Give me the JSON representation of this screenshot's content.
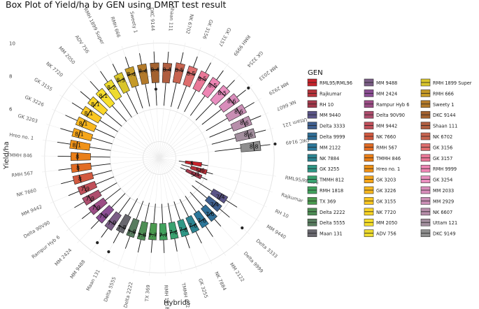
{
  "chart_data": {
    "type": "boxplot-polar",
    "title": "Box Plot of Yield/ha by GEN using DMRT test result",
    "xlabel": "Hybrids",
    "ylabel": "Yield/ha",
    "yticks": [
      6,
      8,
      10
    ],
    "ylim": [
      3,
      10.5
    ],
    "legend_title": "GEN",
    "legend_position": "right",
    "categories": [
      {
        "name": "RML95/RML96",
        "color": "#C8222B",
        "median": 5.0,
        "q1": 4.6,
        "q3": 5.6,
        "lo": 4.2,
        "hi": 6.0,
        "label": "5"
      },
      {
        "name": "Rajkumar",
        "color": "#B5323A",
        "median": 5.6,
        "q1": 5.0,
        "q3": 6.0,
        "lo": 4.4,
        "hi": 6.4,
        "label": "5.6"
      },
      {
        "name": "RH 10",
        "color": "#A3384B",
        "median": 5.4,
        "q1": 4.8,
        "q3": 5.8,
        "lo": 4.4,
        "hi": 6.2,
        "label": "5.4"
      },
      {
        "name": "MM 9440",
        "color": "#5A5487",
        "median": 7.4,
        "q1": 6.8,
        "q3": 7.8,
        "lo": 5.6,
        "hi": 8.6,
        "label": "7.4"
      },
      {
        "name": "Delta 3333",
        "color": "#3F5F8F",
        "median": 7.4,
        "q1": 6.8,
        "q3": 7.8,
        "lo": 5.6,
        "hi": 8.6,
        "label": "7.4"
      },
      {
        "name": "Delta 9999",
        "color": "#2F6E97",
        "median": 7.6,
        "q1": 7.0,
        "q3": 8.0,
        "lo": 5.8,
        "hi": 8.6,
        "label": "7.6"
      },
      {
        "name": "MM 2122",
        "color": "#2C779A",
        "median": 7.6,
        "q1": 7.0,
        "q3": 8.0,
        "lo": 5.8,
        "hi": 8.8,
        "label": "7.6"
      },
      {
        "name": "NK 7884",
        "color": "#2C8492",
        "median": 7.6,
        "q1": 7.0,
        "q3": 8.0,
        "lo": 5.8,
        "hi": 8.8,
        "label": "7.6"
      },
      {
        "name": "GK 3255",
        "color": "#2F9786",
        "median": 7.6,
        "q1": 7.0,
        "q3": 8.0,
        "lo": 5.8,
        "hi": 8.8,
        "label": "7.6"
      },
      {
        "name": "TMMH 812",
        "color": "#3AA270",
        "median": 7.6,
        "q1": 7.0,
        "q3": 8.0,
        "lo": 5.8,
        "hi": 8.8,
        "label": "7.6"
      },
      {
        "name": "RMH 1818",
        "color": "#41A25D",
        "median": 7.7,
        "q1": 7.0,
        "q3": 8.0,
        "lo": 5.8,
        "hi": 8.8,
        "label": "7.7"
      },
      {
        "name": "TX 369",
        "color": "#4A9A4F",
        "median": 7.7,
        "q1": 7.0,
        "q3": 8.0,
        "lo": 5.8,
        "hi": 8.8,
        "label": "7.7"
      },
      {
        "name": "Delta 2222",
        "color": "#4E8E55",
        "median": 7.8,
        "q1": 7.0,
        "q3": 8.1,
        "lo": 5.8,
        "hi": 8.9,
        "label": "7.8"
      },
      {
        "name": "Delta 5555",
        "color": "#587C5F",
        "median": 7.8,
        "q1": 7.0,
        "q3": 8.1,
        "lo": 5.8,
        "hi": 8.9,
        "label": "7.8"
      },
      {
        "name": "Maan 131",
        "color": "#68676E",
        "median": 7.8,
        "q1": 7.0,
        "q3": 8.1,
        "lo": 5.8,
        "hi": 8.9,
        "label": "7.8"
      },
      {
        "name": "MM 9488",
        "color": "#7B5E86",
        "median": 7.9,
        "q1": 7.2,
        "q3": 8.3,
        "lo": 6.0,
        "hi": 9.0,
        "label": "7.9"
      },
      {
        "name": "MM 2424",
        "color": "#8B4E94",
        "median": 7.9,
        "q1": 7.2,
        "q3": 8.3,
        "lo": 6.0,
        "hi": 9.0,
        "label": "7.9"
      },
      {
        "name": "Rampur Hyb 6",
        "color": "#9C4D86",
        "median": 7.9,
        "q1": 7.2,
        "q3": 8.3,
        "lo": 6.0,
        "hi": 9.0,
        "label": "7.9"
      },
      {
        "name": "Delta 90V90",
        "color": "#AE4E6E",
        "median": 7.9,
        "q1": 7.2,
        "q3": 8.3,
        "lo": 6.0,
        "hi": 9.0,
        "label": "7.9"
      },
      {
        "name": "MM 9442",
        "color": "#C0505A",
        "median": 7.9,
        "q1": 7.2,
        "q3": 8.3,
        "lo": 6.0,
        "hi": 9.0,
        "label": "7.9"
      },
      {
        "name": "NK 7660",
        "color": "#D2593F",
        "median": 8.0,
        "q1": 7.2,
        "q3": 8.4,
        "lo": 6.0,
        "hi": 9.2,
        "label": "8"
      },
      {
        "name": "RMH 567",
        "color": "#E16C24",
        "median": 8.0,
        "q1": 7.2,
        "q3": 8.4,
        "lo": 6.0,
        "hi": 9.2,
        "label": "8"
      },
      {
        "name": "TMMH 846",
        "color": "#EA7F18",
        "median": 8.0,
        "q1": 7.2,
        "q3": 8.4,
        "lo": 6.0,
        "hi": 9.2,
        "label": "8"
      },
      {
        "name": "Hreo no. 1",
        "color": "#F09217",
        "median": 8.1,
        "q1": 7.3,
        "q3": 8.5,
        "lo": 6.0,
        "hi": 9.3,
        "label": "8.1"
      },
      {
        "name": "GK 3203",
        "color": "#F5A51A",
        "median": 8.1,
        "q1": 7.3,
        "q3": 8.5,
        "lo": 6.0,
        "hi": 9.3,
        "label": "8.1"
      },
      {
        "name": "GK 3226",
        "color": "#F8B71E",
        "median": 8.1,
        "q1": 7.3,
        "q3": 8.5,
        "lo": 6.0,
        "hi": 9.3,
        "label": "8.1"
      },
      {
        "name": "GK 3155",
        "color": "#FAC722",
        "median": 8.1,
        "q1": 7.3,
        "q3": 8.5,
        "lo": 6.0,
        "hi": 9.3,
        "label": "8.1"
      },
      {
        "name": "NK 7720",
        "color": "#FAD526",
        "median": 8.1,
        "q1": 7.3,
        "q3": 8.5,
        "lo": 6.0,
        "hi": 9.3,
        "label": "8.1"
      },
      {
        "name": "MM 2050",
        "color": "#F7DF2B",
        "median": 8.1,
        "q1": 7.3,
        "q3": 8.5,
        "lo": 6.0,
        "hi": 9.3,
        "label": "8.1"
      },
      {
        "name": "ADV 756",
        "color": "#EDDB2E",
        "median": 8.2,
        "q1": 7.4,
        "q3": 8.6,
        "lo": 6.0,
        "hi": 9.4,
        "label": "8.2"
      },
      {
        "name": "RMH 1899 Super",
        "color": "#D9C52A",
        "median": 8.3,
        "q1": 7.5,
        "q3": 8.7,
        "lo": 6.0,
        "hi": 9.4,
        "label": "8.3"
      },
      {
        "name": "RMH 666",
        "color": "#C59A28",
        "median": 8.4,
        "q1": 7.6,
        "q3": 8.8,
        "lo": 6.2,
        "hi": 9.5,
        "label": "8.4"
      },
      {
        "name": "Sweety 1",
        "color": "#B37A2A",
        "median": 8.4,
        "q1": 7.6,
        "q3": 8.8,
        "lo": 6.2,
        "hi": 9.5,
        "label": "8.4"
      },
      {
        "name": "DKC 9144",
        "color": "#A3622F",
        "median": 8.4,
        "q1": 7.6,
        "q3": 8.8,
        "lo": 6.2,
        "hi": 9.5,
        "label": "8.4"
      },
      {
        "name": "Shaan 111",
        "color": "#B05E40",
        "median": 8.4,
        "q1": 7.6,
        "q3": 8.8,
        "lo": 6.2,
        "hi": 9.5,
        "label": "8.4"
      },
      {
        "name": "NK 6702",
        "color": "#C86450",
        "median": 8.5,
        "q1": 7.7,
        "q3": 8.9,
        "lo": 6.2,
        "hi": 9.6,
        "label": "8.5"
      },
      {
        "name": "GK 3156",
        "color": "#DE6E6E",
        "median": 8.5,
        "q1": 7.7,
        "q3": 8.9,
        "lo": 6.2,
        "hi": 9.6,
        "label": "8.5"
      },
      {
        "name": "GK 3157",
        "color": "#EA7898",
        "median": 8.5,
        "q1": 7.7,
        "q3": 8.9,
        "lo": 6.2,
        "hi": 9.6,
        "label": "8.5"
      },
      {
        "name": "RMH 9999",
        "color": "#EE86B4",
        "median": 8.5,
        "q1": 7.7,
        "q3": 8.9,
        "lo": 6.2,
        "hi": 9.6,
        "label": "8.5"
      },
      {
        "name": "GK 3254",
        "color": "#E88FBF",
        "median": 8.5,
        "q1": 7.7,
        "q3": 8.9,
        "lo": 6.2,
        "hi": 9.6,
        "label": "8.5"
      },
      {
        "name": "MM 2033",
        "color": "#D98DBB",
        "median": 8.6,
        "q1": 7.8,
        "q3": 9.0,
        "lo": 6.3,
        "hi": 9.7,
        "label": "8.6"
      },
      {
        "name": "MM 2929",
        "color": "#C98EB4",
        "median": 8.6,
        "q1": 7.8,
        "q3": 9.0,
        "lo": 6.3,
        "hi": 9.7,
        "label": "8.6"
      },
      {
        "name": "NK 6607",
        "color": "#B78EAA",
        "median": 8.6,
        "q1": 7.8,
        "q3": 9.0,
        "lo": 6.3,
        "hi": 9.7,
        "label": "8.6"
      },
      {
        "name": "Uttam 121",
        "color": "#A38F9E",
        "median": 8.6,
        "q1": 7.8,
        "q3": 9.0,
        "lo": 6.3,
        "hi": 9.7,
        "label": "8.6"
      },
      {
        "name": "DKC 9149",
        "color": "#8E8E8E",
        "median": 8.8,
        "q1": 8.0,
        "q3": 9.2,
        "lo": 6.4,
        "hi": 9.8,
        "label": "8.8"
      }
    ]
  }
}
